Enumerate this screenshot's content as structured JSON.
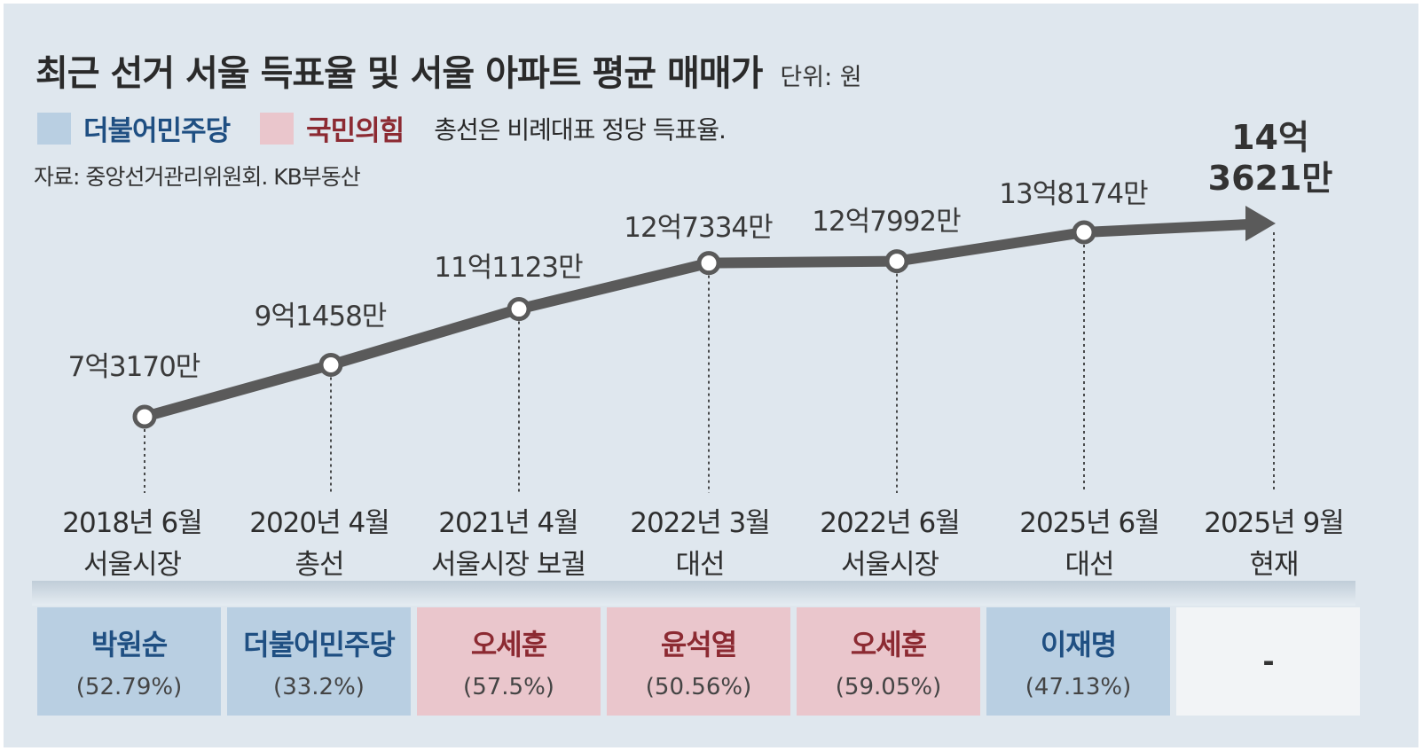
{
  "title": "최근 선거 서울 득표율 및 서울 아파트 평균 매매가",
  "unit": "단위: 원",
  "legend": [
    {
      "label": "더불어민주당",
      "swatch_color": "#b9cfe2",
      "text_color": "#1f4f82"
    },
    {
      "label": "국민의힘",
      "swatch_color": "#eac6cc",
      "text_color": "#8c2a32"
    }
  ],
  "legend_note": "총선은 비례대표 정당 득표율.",
  "source": "자료: 중앙선거관리위원회. KB부동산",
  "colors": {
    "background": "#dfe7ee",
    "line": "#5a5a5a",
    "democratic": "#b9cfe2",
    "ppp": "#eac6cc",
    "none": "#f2f4f6"
  },
  "chart_data": {
    "type": "line",
    "x": [
      "2018년 6월",
      "2020년 4월",
      "2021년 4월",
      "2022년 3월",
      "2022년 6월",
      "2025년 6월",
      "2025년 9월"
    ],
    "events": [
      "서울시장",
      "총선",
      "서울시장 보궐",
      "대선",
      "서울시장",
      "대선",
      "현재"
    ],
    "values": [
      731700000,
      914580000,
      1111230000,
      1273340000,
      1279920000,
      1381740000,
      1436210000
    ],
    "value_labels": [
      "7억3170만",
      "9억1458만",
      "11억1123만",
      "12억7334만",
      "12억7992만",
      "13억8174만",
      "14억\n3621만"
    ],
    "ylabel": "",
    "grid": false,
    "final_point_marker": "arrow"
  },
  "results": [
    {
      "winner": "박원순",
      "pct": "(52.79%)",
      "party": "democratic"
    },
    {
      "winner": "더불어민주당",
      "pct": "(33.2%)",
      "party": "democratic"
    },
    {
      "winner": "오세훈",
      "pct": "(57.5%)",
      "party": "ppp"
    },
    {
      "winner": "윤석열",
      "pct": "(50.56%)",
      "party": "ppp"
    },
    {
      "winner": "오세훈",
      "pct": "(59.05%)",
      "party": "ppp"
    },
    {
      "winner": "이재명",
      "pct": "(47.13%)",
      "party": "democratic"
    },
    {
      "winner": "-",
      "pct": "",
      "party": "none"
    }
  ]
}
